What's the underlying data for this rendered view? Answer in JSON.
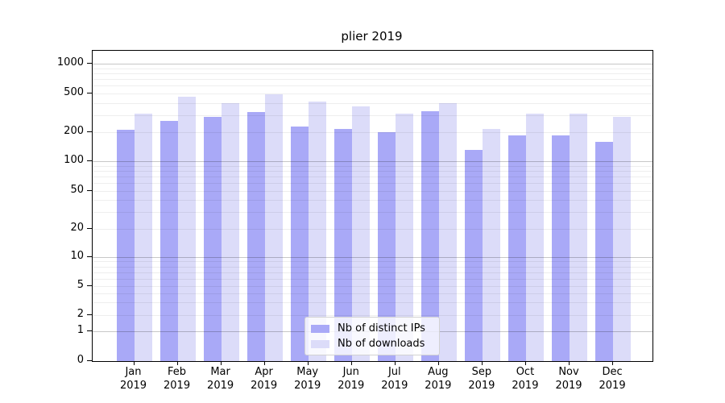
{
  "figure": {
    "background": "#ffffff"
  },
  "chart_data": {
    "type": "bar",
    "title": "plier 2019",
    "categories": [
      "Jan",
      "Feb",
      "Mar",
      "Apr",
      "May",
      "Jun",
      "Jul",
      "Aug",
      "Sep",
      "Oct",
      "Nov",
      "Dec"
    ],
    "year_label": "2019",
    "series": [
      {
        "name": "Nb of distinct IPs",
        "color": "#a9a9f7",
        "values": [
          210,
          260,
          285,
          325,
          230,
          215,
          200,
          330,
          130,
          185,
          185,
          160
        ]
      },
      {
        "name": "Nb of downloads",
        "color": "#dcdcf9",
        "values": [
          310,
          460,
          395,
          495,
          410,
          370,
          310,
          395,
          215,
          312,
          310,
          285
        ]
      }
    ],
    "yscale": "symlog",
    "ytick_labels": [
      "0",
      "1",
      "2",
      "5",
      "10",
      "20",
      "50",
      "100",
      "200",
      "500",
      "1000"
    ],
    "ylim": [
      0,
      1350
    ],
    "grid": {
      "horizontal": true,
      "minor": true
    },
    "legend": {
      "position": "lower-center",
      "frame": true
    }
  },
  "colors": {
    "major_grid": "rgba(0,0,0,0.22)",
    "minor_grid": "rgba(0,0,0,0.065)",
    "axis": "#000000",
    "background": "#ffffff"
  }
}
